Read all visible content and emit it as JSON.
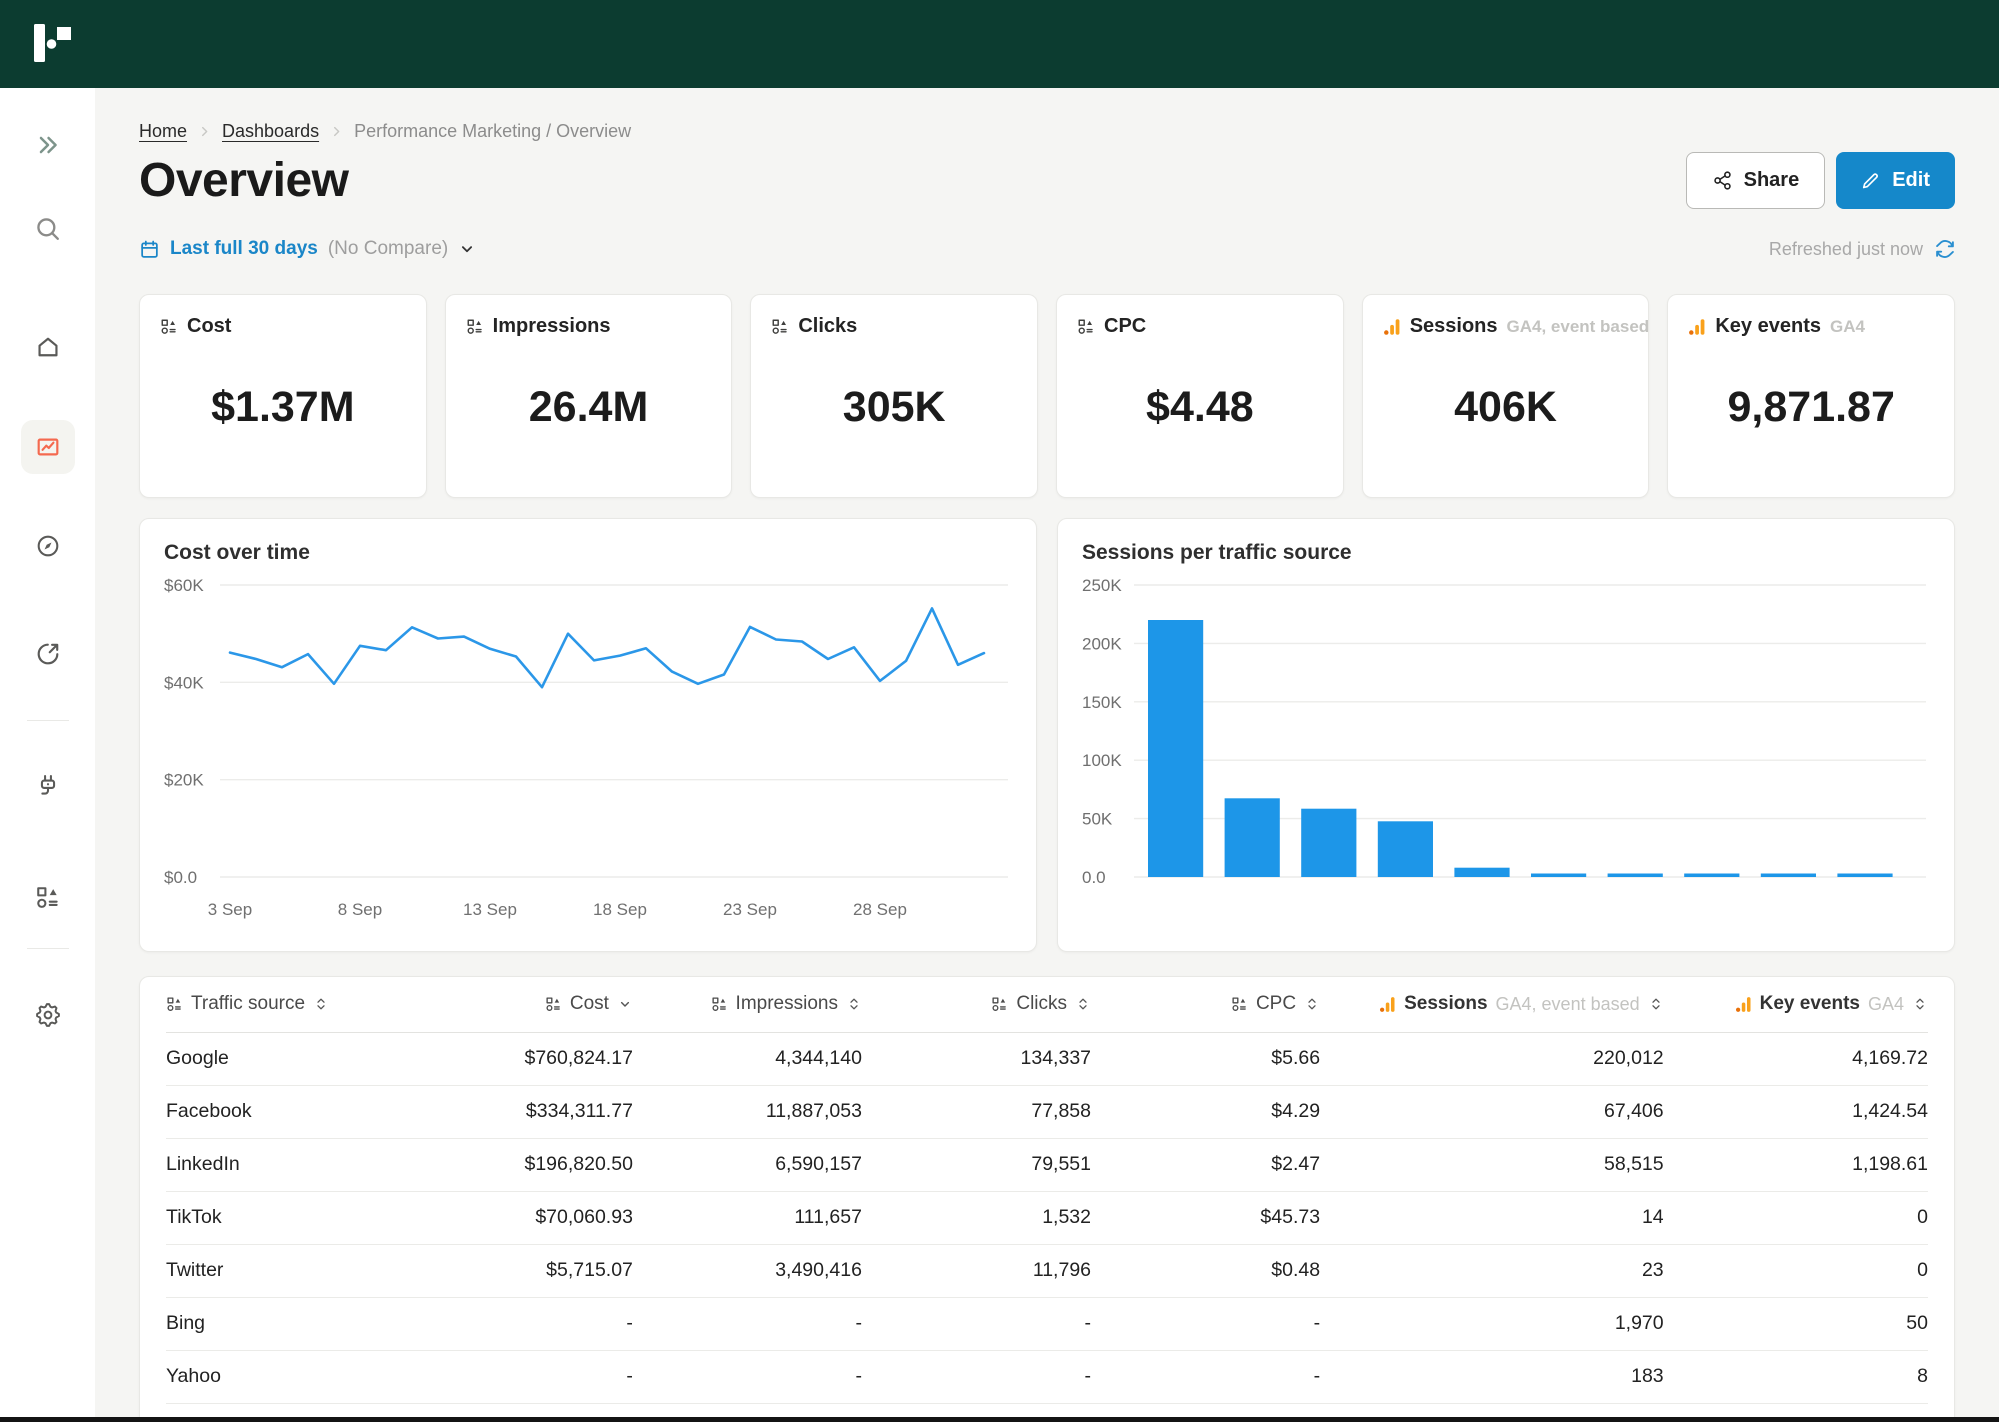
{
  "page": {
    "title": "Overview"
  },
  "breadcrumb": {
    "links": [
      "Home",
      "Dashboards"
    ],
    "current": "Performance Marketing / Overview"
  },
  "actions": {
    "share_label": "Share",
    "edit_label": "Edit"
  },
  "filters": {
    "date_range": "Last full 30 days",
    "compare": "(No Compare)"
  },
  "status": {
    "refreshed": "Refreshed just now"
  },
  "colors": {
    "topbar_green": "#0c3c30",
    "accent_blue": "#1588ca",
    "link_blue": "#1a86c8",
    "line_blue": "#2b97e8",
    "bar_blue": "#1d96e8",
    "active_coral": "#f4694f",
    "ga_orange": "#f9a11b",
    "ga_orange_dark": "#e8710a"
  },
  "sidebar": {
    "items": [
      {
        "name": "expand-sidebar",
        "icon": "chevrons-right-icon",
        "tint": "tint-green"
      },
      {
        "name": "search",
        "icon": "search-icon",
        "tint": "tint-gray"
      },
      {
        "name": "home",
        "icon": "home-icon"
      },
      {
        "name": "dashboards",
        "icon": "dashboards-icon",
        "active": true
      },
      {
        "name": "explore",
        "icon": "compass-icon"
      },
      {
        "name": "shared-links",
        "icon": "external-link-icon"
      },
      {
        "divider": true
      },
      {
        "name": "connectors",
        "icon": "plug-icon"
      },
      {
        "name": "fields",
        "icon": "fields-icon"
      },
      {
        "divider": true
      },
      {
        "name": "settings",
        "icon": "gear-icon"
      }
    ]
  },
  "kpis": [
    {
      "label": "Cost",
      "source": "",
      "value": "$1.37M",
      "icon": "fields-icon"
    },
    {
      "label": "Impressions",
      "source": "",
      "value": "26.4M",
      "icon": "fields-icon"
    },
    {
      "label": "Clicks",
      "source": "",
      "value": "305K",
      "icon": "fields-icon"
    },
    {
      "label": "CPC",
      "source": "",
      "value": "$4.48",
      "icon": "fields-icon"
    },
    {
      "label": "Sessions",
      "source": "GA4, event based",
      "value": "406K",
      "icon": "ga-bars-icon"
    },
    {
      "label": "Key events",
      "source": "GA4",
      "value": "9,871.87",
      "icon": "ga-bars-icon"
    }
  ],
  "chart_data": [
    {
      "type": "line",
      "title": "Cost over time",
      "xlabel": "",
      "ylabel": "",
      "ylim": [
        0,
        60000
      ],
      "grid": true,
      "legend": false,
      "y_ticks": [
        "$0.0",
        "$20K",
        "$40K",
        "$60K"
      ],
      "y_tick_values": [
        0,
        20000,
        40000,
        60000
      ],
      "x_ticks": [
        "3 Sep",
        "8 Sep",
        "13 Sep",
        "18 Sep",
        "23 Sep",
        "28 Sep"
      ],
      "x_tick_indices": [
        0,
        5,
        10,
        15,
        20,
        25
      ],
      "values": [
        46100,
        44800,
        43100,
        45800,
        39700,
        47500,
        46600,
        51300,
        49000,
        49400,
        46900,
        45300,
        39000,
        50000,
        44500,
        45500,
        47000,
        42200,
        39700,
        41600,
        51400,
        48800,
        48400,
        44800,
        47200,
        40300,
        44400,
        55200,
        43600,
        46000
      ],
      "line_color": "#2b97e8"
    },
    {
      "type": "bar",
      "title": "Sessions per traffic source",
      "xlabel": "",
      "ylabel": "",
      "ylim": [
        0,
        250000
      ],
      "grid": true,
      "legend": false,
      "y_ticks": [
        "0.0",
        "50K",
        "100K",
        "150K",
        "200K",
        "250K"
      ],
      "y_tick_values": [
        0,
        50000,
        100000,
        150000,
        200000,
        250000
      ],
      "categories": [],
      "values": [
        220012,
        67406,
        58515,
        47700,
        8000,
        2100,
        2050,
        2000,
        2000,
        1950
      ],
      "bar_color": "#1d96e8"
    }
  ],
  "table": {
    "columns": [
      {
        "label": "Traffic source",
        "icon": "fields-icon",
        "sort": "both",
        "align": "left"
      },
      {
        "label": "Cost",
        "icon": "fields-icon",
        "sort": "desc",
        "align": "right"
      },
      {
        "label": "Impressions",
        "icon": "fields-icon",
        "sort": "both",
        "align": "right"
      },
      {
        "label": "Clicks",
        "icon": "fields-icon",
        "sort": "both",
        "align": "right"
      },
      {
        "label": "CPC",
        "icon": "fields-icon",
        "sort": "both",
        "align": "right"
      },
      {
        "label": "Sessions",
        "source": "GA4, event based",
        "icon": "ga-bars-icon",
        "sort": "both",
        "align": "right"
      },
      {
        "label": "Key events",
        "source": "GA4",
        "icon": "ga-bars-icon",
        "sort": "both",
        "align": "right"
      }
    ],
    "rows": [
      [
        "Google",
        "$760,824.17",
        "4,344,140",
        "134,337",
        "$5.66",
        "220,012",
        "4,169.72"
      ],
      [
        "Facebook",
        "$334,311.77",
        "11,887,053",
        "77,858",
        "$4.29",
        "67,406",
        "1,424.54"
      ],
      [
        "LinkedIn",
        "$196,820.50",
        "6,590,157",
        "79,551",
        "$2.47",
        "58,515",
        "1,198.61"
      ],
      [
        "TikTok",
        "$70,060.93",
        "111,657",
        "1,532",
        "$45.73",
        "14",
        "0"
      ],
      [
        "Twitter",
        "$5,715.07",
        "3,490,416",
        "11,796",
        "$0.48",
        "23",
        "0"
      ],
      [
        "Bing",
        "-",
        "-",
        "-",
        "-",
        "1,970",
        "50"
      ],
      [
        "Yahoo",
        "-",
        "-",
        "-",
        "-",
        "183",
        "8"
      ]
    ]
  }
}
